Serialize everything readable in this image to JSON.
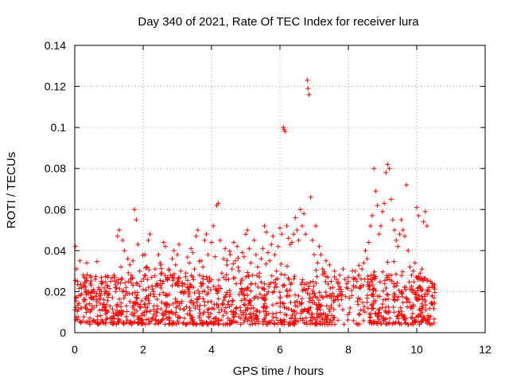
{
  "chart_data": {
    "type": "scatter",
    "title": "Day 340 of 2021, Rate Of TEC Index for receiver lura",
    "xlabel": "GPS time / hours",
    "ylabel": "ROTI / TECUs",
    "xlim": [
      0,
      12
    ],
    "ylim": [
      0,
      0.14
    ],
    "xticks": [
      0,
      2,
      4,
      6,
      8,
      10,
      12
    ],
    "yticks": [
      0,
      0.02,
      0.04,
      0.06,
      0.08,
      0.1,
      0.12,
      0.14
    ],
    "xtick_labels": [
      "0",
      "2",
      "4",
      "6",
      "8",
      "10",
      "12"
    ],
    "ytick_labels": [
      "0",
      "0.02",
      "0.04",
      "0.06",
      "0.08",
      "0.1",
      "0.12",
      "0.14"
    ],
    "grid": true,
    "marker": "+",
    "color": "#ff0000",
    "series": [
      {
        "x": [
          0.02,
          0.05,
          0.08,
          0.12,
          0.15,
          0.2,
          0.25,
          0.3,
          0.35,
          0.4,
          0.45,
          0.5,
          0.55,
          0.6,
          0.65,
          0.7,
          0.75,
          0.8,
          0.85,
          0.9,
          0.95,
          1.0,
          1.05,
          1.1,
          1.15,
          1.2,
          1.25,
          1.3,
          1.35,
          1.4,
          1.45,
          1.5,
          1.55,
          1.6,
          1.65,
          1.7,
          1.75,
          1.8,
          1.85,
          1.9,
          1.95,
          2.0,
          2.05,
          2.1,
          2.15,
          2.2,
          2.25,
          2.3,
          2.35,
          2.4,
          2.45,
          2.5,
          2.55,
          2.6,
          2.65,
          2.7,
          2.75,
          2.8,
          2.85,
          2.9,
          2.95,
          3.0,
          3.05,
          3.1,
          3.15,
          3.2,
          3.25,
          3.3,
          3.35,
          3.4,
          3.45,
          3.5,
          3.55,
          3.6,
          3.65,
          3.7,
          3.75,
          3.8,
          3.85,
          3.9,
          3.95,
          4.0,
          4.05,
          4.1,
          4.15,
          4.2,
          4.25,
          4.3,
          4.35,
          4.4,
          4.45,
          4.5,
          4.55,
          4.6,
          4.65,
          4.7,
          4.75,
          4.8,
          4.85,
          4.9,
          4.95,
          5.0,
          5.05,
          5.1,
          5.15,
          5.2,
          5.25,
          5.3,
          5.35,
          5.4,
          5.45,
          5.5,
          5.55,
          5.6,
          5.65,
          5.7,
          5.75,
          5.8,
          5.85,
          5.9,
          5.95,
          6.0,
          6.05,
          6.1,
          6.12,
          6.15,
          6.2,
          6.25,
          6.3,
          6.35,
          6.4,
          6.45,
          6.5,
          6.55,
          6.6,
          6.65,
          6.7,
          6.75,
          6.8,
          6.82,
          6.85,
          6.9,
          6.95,
          7.0,
          7.05,
          7.1,
          7.15,
          7.2,
          7.25,
          7.3,
          7.35,
          7.4,
          7.45,
          7.5,
          7.55,
          7.6,
          7.65,
          7.7,
          7.75,
          7.8,
          7.85,
          7.9,
          7.95,
          8.0,
          8.05,
          8.1,
          8.15,
          8.2,
          8.25,
          8.3,
          8.35,
          8.4,
          8.45,
          8.5,
          8.55,
          8.6,
          8.65,
          8.7,
          8.75,
          8.8,
          8.85,
          8.9,
          8.95,
          9.0,
          9.05,
          9.1,
          9.15,
          9.2,
          9.25,
          9.3,
          9.35,
          9.4,
          9.45,
          9.5,
          9.55,
          9.6,
          9.65,
          9.7,
          9.75,
          9.8,
          9.85,
          9.9,
          9.95,
          10.0,
          10.05,
          10.1,
          10.15,
          10.2,
          10.25,
          10.3,
          10.35,
          10.4,
          10.45,
          10.5
        ],
        "y": [
          0.042,
          0.031,
          0.025,
          0.018,
          0.035,
          0.022,
          0.028,
          0.016,
          0.034,
          0.019,
          0.024,
          0.017,
          0.021,
          0.026,
          0.015,
          0.022,
          0.018,
          0.024,
          0.016,
          0.02,
          0.023,
          0.019,
          0.025,
          0.017,
          0.028,
          0.02,
          0.047,
          0.05,
          0.032,
          0.045,
          0.04,
          0.022,
          0.036,
          0.019,
          0.028,
          0.035,
          0.06,
          0.055,
          0.043,
          0.03,
          0.025,
          0.021,
          0.038,
          0.032,
          0.045,
          0.048,
          0.027,
          0.02,
          0.031,
          0.024,
          0.038,
          0.034,
          0.029,
          0.044,
          0.042,
          0.026,
          0.031,
          0.028,
          0.036,
          0.04,
          0.033,
          0.038,
          0.043,
          0.03,
          0.024,
          0.02,
          0.029,
          0.022,
          0.034,
          0.041,
          0.039,
          0.031,
          0.047,
          0.05,
          0.028,
          0.035,
          0.032,
          0.045,
          0.048,
          0.038,
          0.025,
          0.044,
          0.052,
          0.037,
          0.062,
          0.063,
          0.045,
          0.029,
          0.036,
          0.041,
          0.033,
          0.026,
          0.038,
          0.031,
          0.044,
          0.035,
          0.042,
          0.03,
          0.024,
          0.039,
          0.037,
          0.048,
          0.05,
          0.041,
          0.034,
          0.028,
          0.045,
          0.038,
          0.032,
          0.029,
          0.036,
          0.041,
          0.052,
          0.049,
          0.039,
          0.035,
          0.043,
          0.047,
          0.038,
          0.03,
          0.042,
          0.051,
          0.048,
          0.1,
          0.099,
          0.098,
          0.052,
          0.046,
          0.043,
          0.044,
          0.048,
          0.056,
          0.05,
          0.045,
          0.06,
          0.052,
          0.058,
          0.048,
          0.123,
          0.119,
          0.116,
          0.066,
          0.045,
          0.038,
          0.052,
          0.034,
          0.042,
          0.038,
          0.031,
          0.029,
          0.035,
          0.027,
          0.033,
          0.025,
          0.022,
          0.03,
          0.026,
          0.024,
          0.028,
          0.02,
          0.031,
          0.026,
          0.022,
          0.027,
          0.012,
          0.018,
          0.023,
          0.03,
          0.025,
          0.028,
          0.022,
          0.031,
          0.034,
          0.04,
          0.036,
          0.044,
          0.052,
          0.057,
          0.08,
          0.069,
          0.062,
          0.048,
          0.052,
          0.059,
          0.063,
          0.078,
          0.082,
          0.08,
          0.065,
          0.055,
          0.05,
          0.045,
          0.042,
          0.048,
          0.055,
          0.05,
          0.047,
          0.072,
          0.04,
          0.032,
          0.028,
          0.03,
          0.034,
          0.061,
          0.057,
          0.029,
          0.031,
          0.054,
          0.059,
          0.052,
          0.02,
          0.025,
          0.018,
          0.022
        ]
      }
    ]
  }
}
